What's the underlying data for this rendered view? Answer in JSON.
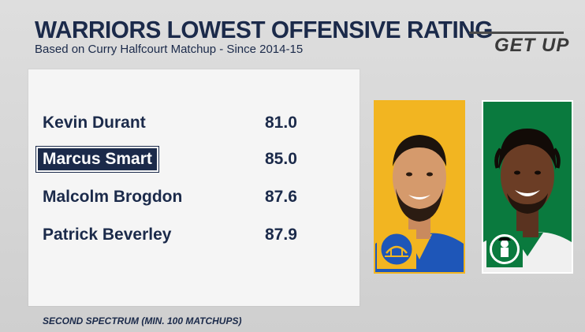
{
  "header": {
    "title": "WARRIORS LOWEST OFFENSIVE RATING",
    "subtitle": "Based on Curry Halfcourt Matchup - Since 2014-15",
    "brand": "GET UP"
  },
  "table": {
    "rows": [
      {
        "name": "Kevin Durant",
        "value": "81.0",
        "highlighted": false
      },
      {
        "name": "Marcus Smart",
        "value": "85.0",
        "highlighted": true
      },
      {
        "name": "Malcolm Brogdon",
        "value": "87.6",
        "highlighted": false
      },
      {
        "name": "Patrick Beverley",
        "value": "87.9",
        "highlighted": false
      }
    ]
  },
  "footer": {
    "source": "SECOND SPECTRUM (MIN. 100 MATCHUPS)"
  },
  "photos": [
    {
      "team_logo": "warriors-bridge-logo",
      "background": "#f2b521"
    },
    {
      "team_logo": "celtics-leprechaun-logo",
      "background": "#0a7a3e"
    }
  ],
  "colors": {
    "navy": "#1b2a4a",
    "warriors_gold": "#f2b521",
    "celtics_green": "#0a7a3e"
  }
}
